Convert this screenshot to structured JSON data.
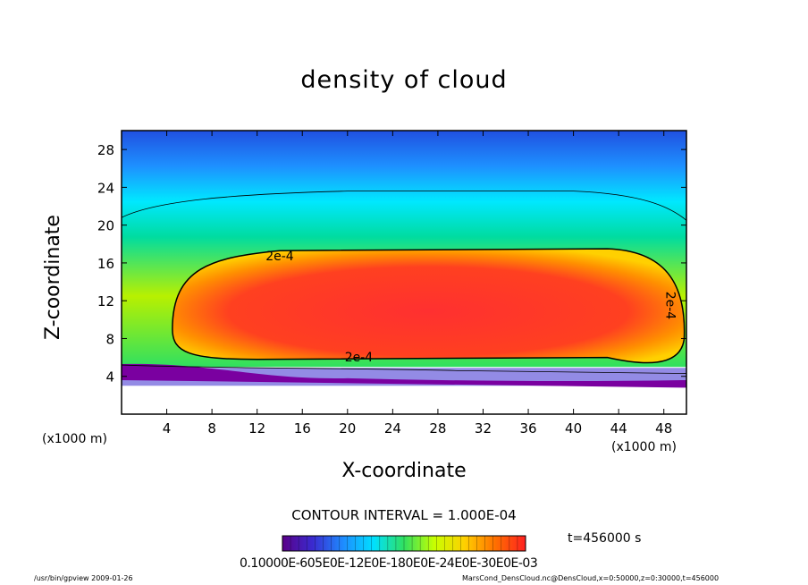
{
  "chart_data": {
    "type": "heatmap",
    "title": "density of cloud",
    "xlabel": "X-coordinate",
    "ylabel": "Z-coordinate",
    "x_unit": "(x1000 m)",
    "xlim": [
      0,
      50
    ],
    "ylim": [
      0,
      30
    ],
    "x_ticks": [
      4,
      8,
      12,
      16,
      20,
      24,
      28,
      32,
      36,
      40,
      44,
      48
    ],
    "y_ticks": [
      4,
      8,
      12,
      16,
      20,
      24,
      28
    ],
    "contour_labels": [
      {
        "text": "2e-4",
        "x": 14,
        "y": 16.3
      },
      {
        "text": "2e-4",
        "x": 21,
        "y": 5.6
      },
      {
        "text": "2e-4",
        "x": 48.2,
        "y": 11.5
      }
    ],
    "contour_interval_text": "CONTOUR INTERVAL = 1.000E-04",
    "time_text": "t=456000 s",
    "colorbar_text": "0.10000E-605E0E-12E0E-180E0E-24E0E-30E0E-03",
    "colormap": [
      "#5a0088",
      "#3a2bd0",
      "#1e8cff",
      "#00e0ff",
      "#30e060",
      "#c8ff00",
      "#ffd000",
      "#ff7000",
      "#ff2020"
    ]
  },
  "footer": {
    "left": "/usr/bin/gpview  2009-01-26",
    "right": "MarsCond_DensCloud.nc@DensCloud,x=0:50000,z=0:30000,t=456000"
  }
}
